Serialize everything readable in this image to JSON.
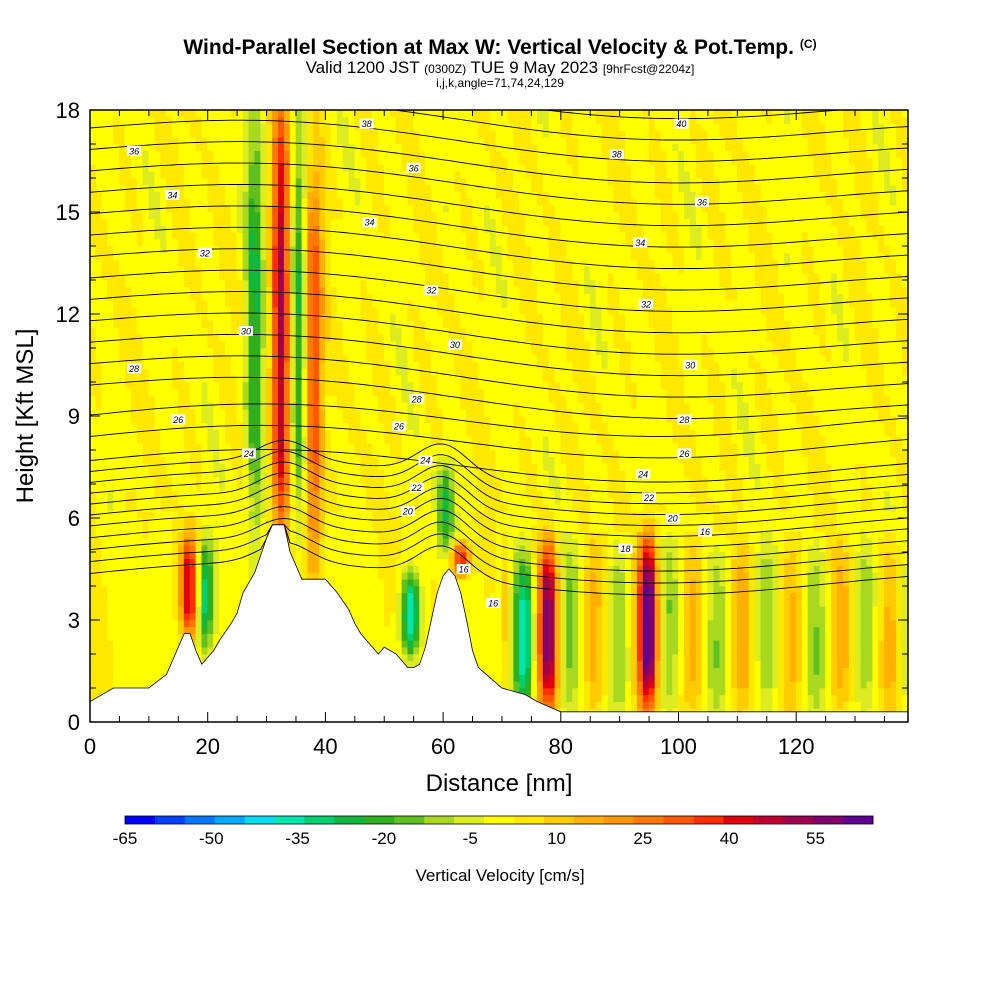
{
  "header": {
    "title": "Wind-Parallel Section at Max W: Vertical Velocity & Pot.Temp.",
    "copyright": "(C)",
    "valid_prefix": "Valid 1200 JST",
    "valid_utc": "(0300Z)",
    "valid_date": "TUE 9 May 2023",
    "forecast": "[9hrFcst@2204z]",
    "indices": "i,j,k,angle=71,74,24,129"
  },
  "colorbar": {
    "label": "Vertical Velocity [cm/s]",
    "tick_labels": [
      "-65",
      "-50",
      "-35",
      "-20",
      "-5",
      "10",
      "25",
      "40",
      "55"
    ],
    "tick_values": [
      -65,
      -50,
      -35,
      -20,
      -5,
      10,
      25,
      40,
      55
    ],
    "min": -65,
    "max": 65,
    "colors": [
      "#0000ff",
      "#0040ff",
      "#0078ff",
      "#00a8ff",
      "#00dcf0",
      "#00e8b0",
      "#00d070",
      "#10b840",
      "#30b020",
      "#60c020",
      "#a8d820",
      "#dcec20",
      "#ffff00",
      "#ffe800",
      "#ffcc00",
      "#ffb000",
      "#ff9800",
      "#ff7800",
      "#ff5800",
      "#ff3000",
      "#e00010",
      "#c00030",
      "#a00050",
      "#800070",
      "#600090"
    ]
  },
  "chart_data": {
    "type": "heatmap",
    "title": "Wind-Parallel Section at Max W: Vertical Velocity & Pot.Temp.",
    "xlabel": "Distance [nm]",
    "ylabel": "Height [Kft MSL]",
    "xlim": [
      0,
      139
    ],
    "ylim": [
      0,
      18
    ],
    "x_ticks": [
      0,
      20,
      40,
      60,
      80,
      100,
      120
    ],
    "y_ticks": [
      0,
      3,
      6,
      9,
      12,
      15,
      18
    ],
    "updrafts": [
      {
        "x": 17,
        "z_bottom": 2.6,
        "z_top": 5.4,
        "peak_w": 45
      },
      {
        "x": 32.5,
        "z_bottom": 5.8,
        "z_top": 18,
        "peak_w": 50
      },
      {
        "x": 38,
        "z_bottom": 4.5,
        "z_top": 16,
        "peak_w": 35
      },
      {
        "x": 63,
        "z_bottom": 4.3,
        "z_top": 5.3,
        "peak_w": 40
      },
      {
        "x": 78,
        "z_bottom": 0.5,
        "z_top": 5.2,
        "peak_w": 45
      },
      {
        "x": 95,
        "z_bottom": 0.5,
        "z_top": 5.4,
        "peak_w": 55
      }
    ],
    "downdrafts": [
      {
        "x": 19.5,
        "z_bottom": 2.2,
        "z_top": 5.2,
        "peak_w": -35
      },
      {
        "x": 28,
        "z_bottom": 6,
        "z_top": 17.5,
        "peak_w": -25
      },
      {
        "x": 35.5,
        "z_bottom": 6,
        "z_top": 17.5,
        "peak_w": -25
      },
      {
        "x": 54.5,
        "z_bottom": 2,
        "z_top": 4.3,
        "peak_w": -40
      },
      {
        "x": 60.5,
        "z_bottom": 5,
        "z_top": 7.6,
        "peak_w": -25
      },
      {
        "x": 74,
        "z_bottom": 0.6,
        "z_top": 4.5,
        "peak_w": -30
      }
    ],
    "terrain": {
      "x": [
        0,
        2,
        4,
        10,
        13,
        14,
        16,
        17,
        18,
        19,
        20,
        21,
        22,
        24,
        25,
        26,
        28,
        30,
        31,
        33,
        34,
        35,
        36,
        40,
        42,
        44,
        45,
        46,
        48,
        49,
        50,
        52,
        53,
        54,
        55,
        56,
        57,
        58,
        59,
        60,
        61,
        62,
        63,
        64,
        65,
        66,
        68,
        70,
        72,
        74,
        76,
        80,
        139
      ],
      "z": [
        0.6,
        0.8,
        1.0,
        1.0,
        1.4,
        1.8,
        2.6,
        2.6,
        2.1,
        1.7,
        1.9,
        2.1,
        2.4,
        2.9,
        3.2,
        3.8,
        4.4,
        5.4,
        5.8,
        5.8,
        5.0,
        4.6,
        4.2,
        4.2,
        3.8,
        3.3,
        2.9,
        2.6,
        2.2,
        2.0,
        2.2,
        2.0,
        1.8,
        1.6,
        1.6,
        1.7,
        2.2,
        3.0,
        3.8,
        4.3,
        4.5,
        4.3,
        3.8,
        3.0,
        2.1,
        1.6,
        1.3,
        1.0,
        0.9,
        0.8,
        0.6,
        0.3,
        0.3
      ]
    },
    "theta_contours": [
      {
        "label": "16",
        "x": 63.5,
        "y": 4.5
      },
      {
        "label": "16",
        "x": 68.5,
        "y": 3.5
      },
      {
        "label": "16",
        "x": 104.5,
        "y": 5.6
      },
      {
        "label": "18",
        "x": 91,
        "y": 5.1
      },
      {
        "label": "20",
        "x": 54,
        "y": 6.2
      },
      {
        "label": "20",
        "x": 99,
        "y": 6.0
      },
      {
        "label": "22",
        "x": 55.5,
        "y": 6.9
      },
      {
        "label": "22",
        "x": 95,
        "y": 6.6
      },
      {
        "label": "24",
        "x": 27,
        "y": 7.9
      },
      {
        "label": "24",
        "x": 57,
        "y": 7.7
      },
      {
        "label": "24",
        "x": 94,
        "y": 7.3
      },
      {
        "label": "26",
        "x": 15,
        "y": 8.9
      },
      {
        "label": "26",
        "x": 52.5,
        "y": 8.7
      },
      {
        "label": "26",
        "x": 101,
        "y": 7.9
      },
      {
        "label": "28",
        "x": 7.5,
        "y": 10.4
      },
      {
        "label": "28",
        "x": 55.5,
        "y": 9.5
      },
      {
        "label": "28",
        "x": 101,
        "y": 8.9
      },
      {
        "label": "30",
        "x": 26.5,
        "y": 11.5
      },
      {
        "label": "30",
        "x": 62,
        "y": 11.1
      },
      {
        "label": "30",
        "x": 102,
        "y": 10.5
      },
      {
        "label": "32",
        "x": 19.5,
        "y": 13.8
      },
      {
        "label": "32",
        "x": 58,
        "y": 12.7
      },
      {
        "label": "32",
        "x": 94.5,
        "y": 12.3
      },
      {
        "label": "34",
        "x": 14,
        "y": 15.5
      },
      {
        "label": "34",
        "x": 47.5,
        "y": 14.7
      },
      {
        "label": "34",
        "x": 93.5,
        "y": 14.1
      },
      {
        "label": "36",
        "x": 7.5,
        "y": 16.8
      },
      {
        "label": "36",
        "x": 55,
        "y": 16.3
      },
      {
        "label": "36",
        "x": 104,
        "y": 15.3
      },
      {
        "label": "38",
        "x": 47,
        "y": 17.6
      },
      {
        "label": "38",
        "x": 89.5,
        "y": 16.7
      },
      {
        "label": "40",
        "x": 100.5,
        "y": 17.6
      }
    ]
  }
}
